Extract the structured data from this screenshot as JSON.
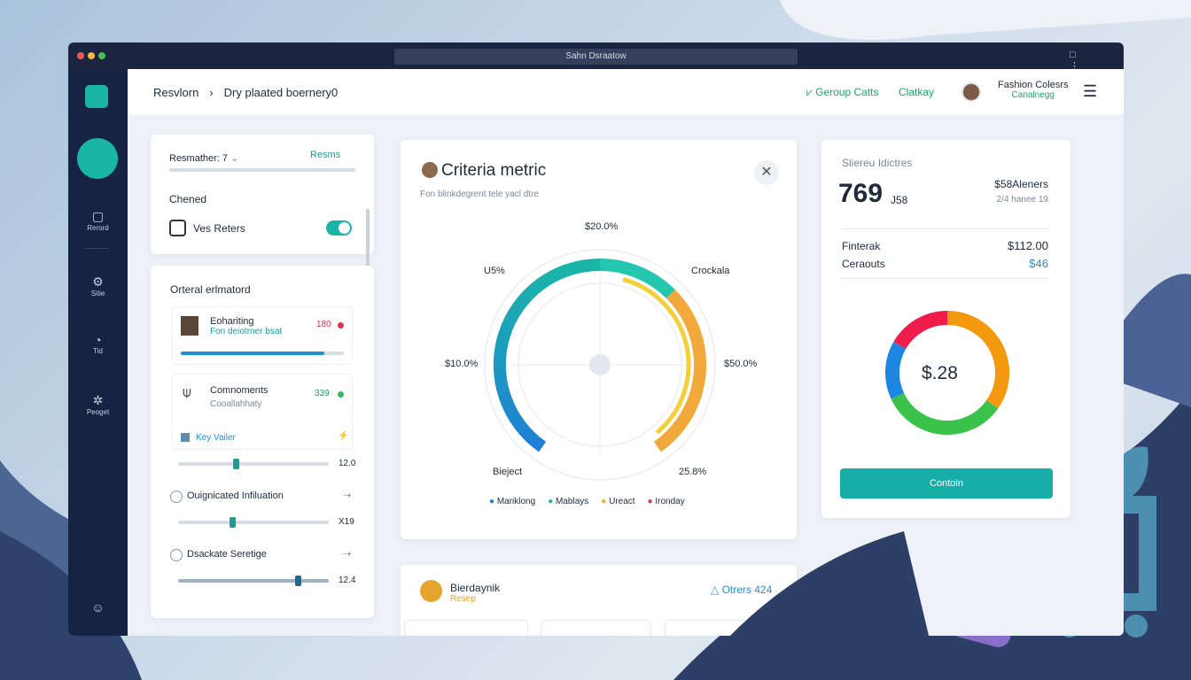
{
  "browser": {
    "url": "Sahn Dsraatow"
  },
  "sidebar": {
    "items": [
      "Rerord",
      "Sitie",
      "Tid",
      "Peoget"
    ]
  },
  "header": {
    "breadcrumb": [
      "Resvlorn",
      "Dry plaated boernery0"
    ],
    "links": [
      "Geroup Catts",
      "Clatkay"
    ],
    "user": {
      "name": "Fashion Colesrs",
      "status": "Canalnegg"
    }
  },
  "filters": {
    "select": "Resmather: 7",
    "tab": "Resms",
    "section": "Chened",
    "checkbox": "Ves Reters"
  },
  "list": {
    "title": "Orteral erlmatord",
    "items": [
      {
        "title": "Eohariting",
        "subtitle": "Fon deiotrner bsat",
        "value": "180"
      },
      {
        "title": "Comnoments",
        "subtitle": "Cooallahhaty",
        "value": "339"
      }
    ],
    "key": "Key Vailer",
    "sliders": [
      {
        "value": "12.0"
      },
      {
        "label": "Ouignicated Infiluation",
        "value": "X19"
      },
      {
        "label": "Dsackate Seretige",
        "value": "12.4"
      }
    ]
  },
  "metric": {
    "title": "Criteria metric",
    "subtitle": "Fon blinkdegrent tele yacl dtre",
    "labels": [
      "$20.0%",
      "U5%",
      "Crockala",
      "$10.0%",
      "$50.0%",
      "Bieject",
      "25.8%"
    ],
    "legend": [
      "Mariklong",
      "Mablays",
      "Ureact",
      "Ironday"
    ]
  },
  "summary": {
    "title": "Sliereu Idictres",
    "big": "769",
    "big_suffix": "J58",
    "right_title": "$58Aleners",
    "right_sub": "2/4 hanee 19",
    "rows": [
      [
        "Finterak",
        "$112.00"
      ],
      [
        "Ceraouts",
        "$46"
      ]
    ],
    "donut_center": "$.28",
    "button": "Contoln"
  },
  "bottom": {
    "name": "Bierdaynik",
    "sub": "Resep",
    "badge": "Otrers 424"
  }
}
